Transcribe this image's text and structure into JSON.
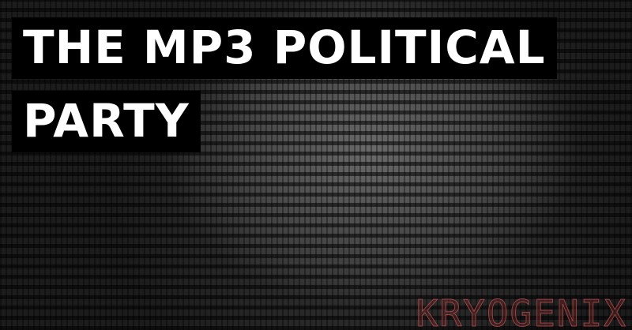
{
  "header": {
    "title_line_1": "THE MP3 POLITICAL",
    "title_line_2": "PARTY"
  },
  "watermark": "KRYOGENIX"
}
